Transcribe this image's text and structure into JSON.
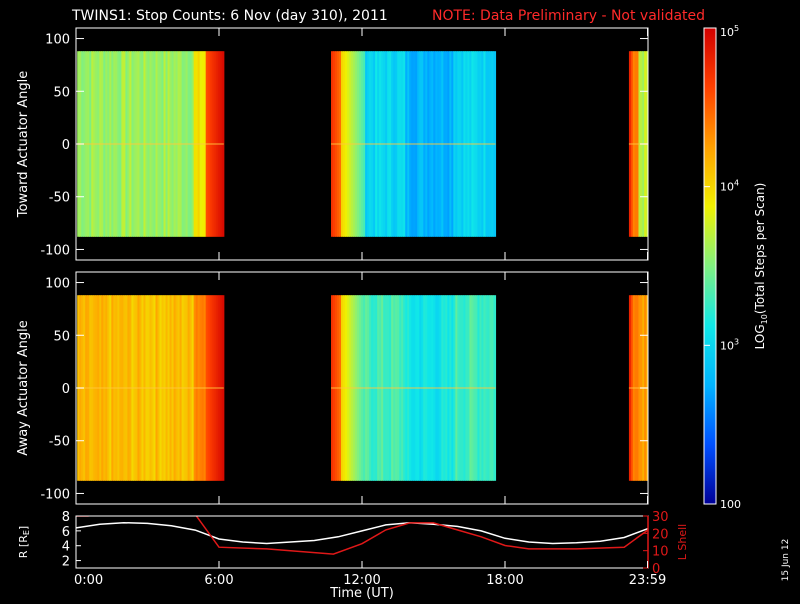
{
  "title": {
    "main": "TWINS1: Stop Counts:  6 Nov (day 310), 2011",
    "note": "NOTE: Data Preliminary - Not validated",
    "note_color": "#ff2a2a"
  },
  "side_stamp": "15 Jun 12",
  "colorbar": {
    "label_prefix": "LOG",
    "label_sub": "10",
    "label_suffix": "(Total Steps per Scan)",
    "scale": "log",
    "range": [
      100,
      100000
    ],
    "ticks": [
      {
        "value": 100,
        "base": "100",
        "exp": ""
      },
      {
        "value": 1000,
        "base": "10",
        "exp": "3"
      },
      {
        "value": 10000,
        "base": "10",
        "exp": "4"
      },
      {
        "value": 100000,
        "base": "10",
        "exp": "5"
      }
    ],
    "stops": [
      "#000098",
      "#0050ff",
      "#00b4ff",
      "#10e8e8",
      "#80f080",
      "#f0f000",
      "#ffa000",
      "#ff4000",
      "#d00000"
    ]
  },
  "time_axis": {
    "xlabel": "Time (UT)",
    "ticks": [
      {
        "hour": 0,
        "label": "0:00"
      },
      {
        "hour": 6,
        "label": "6:00"
      },
      {
        "hour": 12,
        "label": "12:00"
      },
      {
        "hour": 18,
        "label": "18:00"
      },
      {
        "hour": 23.98,
        "label": "23:59"
      }
    ]
  },
  "chart_data": [
    {
      "type": "heatmap",
      "panel": "toward",
      "ylabel": "Toward Actuator Angle",
      "xlim_hours": [
        0,
        24
      ],
      "ylim": [
        -110,
        110
      ],
      "yticks": [
        -100,
        -50,
        0,
        50,
        100
      ],
      "data_range": [
        -88,
        88
      ],
      "coverage": [
        {
          "start": 0.05,
          "end": 6.2,
          "profile": "orange-edge-end",
          "base_log": 3.6
        },
        {
          "start": 10.7,
          "end": 17.6,
          "profile": "orange-edge-start-blue",
          "base_log": 3.0
        },
        {
          "start": 23.2,
          "end": 24.0,
          "profile": "orange-edge-start",
          "base_log": 3.7
        }
      ]
    },
    {
      "type": "heatmap",
      "panel": "away",
      "ylabel": "Away Actuator Angle",
      "xlim_hours": [
        0,
        24
      ],
      "ylim": [
        -110,
        110
      ],
      "yticks": [
        -100,
        -50,
        0,
        50,
        100
      ],
      "data_range": [
        -88,
        88
      ],
      "coverage": [
        {
          "start": 0.05,
          "end": 6.2,
          "profile": "orange-edge-end",
          "base_log": 4.1
        },
        {
          "start": 10.7,
          "end": 17.6,
          "profile": "orange-edge-start-blue",
          "base_log": 3.3
        },
        {
          "start": 23.2,
          "end": 24.0,
          "profile": "orange-edge-start",
          "base_log": 4.3
        }
      ]
    },
    {
      "type": "line",
      "panel": "orbit",
      "ylabel_left": "R [R",
      "ylabel_left_sub": "E",
      "ylabel_left_end": "]",
      "ylabel_right": "L Shell",
      "ylim_left": [
        1,
        8
      ],
      "yticks_left": [
        2,
        4,
        6,
        8
      ],
      "ylim_right": [
        0,
        30
      ],
      "yticks_right": [
        0,
        10,
        20,
        30
      ],
      "series": [
        {
          "name": "R",
          "color": "#ffffff",
          "axis": "left",
          "x": [
            0,
            1,
            2,
            3,
            4,
            5,
            6,
            7,
            8,
            9,
            10,
            11,
            12,
            13,
            14,
            15,
            16,
            17,
            18,
            19,
            20,
            21,
            22,
            23,
            24
          ],
          "y": [
            6.4,
            6.9,
            7.1,
            7.0,
            6.7,
            6.1,
            4.9,
            4.5,
            4.3,
            4.5,
            4.7,
            5.2,
            6.0,
            6.8,
            7.1,
            6.9,
            6.6,
            6.0,
            5.0,
            4.5,
            4.3,
            4.4,
            4.6,
            5.1,
            6.3
          ]
        },
        {
          "name": "L Shell",
          "color": "#e01818",
          "axis": "right",
          "x": [
            0,
            0.5,
            1,
            5,
            6,
            8,
            10.8,
            12,
            13,
            14,
            15,
            16,
            17,
            18,
            19,
            21,
            23,
            24
          ],
          "y": [
            30,
            30,
            31,
            31,
            12,
            11,
            8,
            14,
            22,
            26,
            26,
            22,
            18,
            13,
            11,
            11,
            12,
            22
          ]
        }
      ]
    }
  ]
}
